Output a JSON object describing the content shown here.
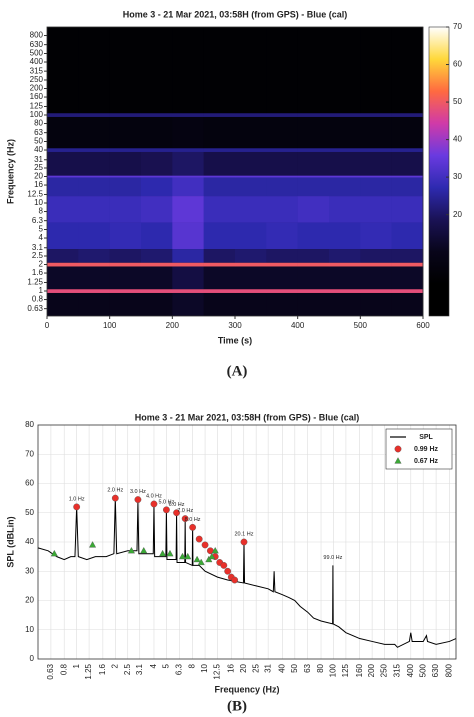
{
  "chart_data": [
    {
      "type": "heatmap",
      "title": "Home 3 - 21 Mar 2021, 03:58H (from GPS) - Blue (cal)",
      "x_label": "Time (s)",
      "y_label": "Frequency (Hz)",
      "panel_label": "(A)",
      "xlim": [
        0,
        600
      ],
      "xticks": [
        0,
        100,
        200,
        300,
        400,
        500,
        600
      ],
      "log_y": true,
      "ylim": [
        0.52,
        1000
      ],
      "yticks": [
        0.63,
        0.8,
        1,
        1.25,
        1.6,
        2,
        2.5,
        3.1,
        4,
        5,
        6.3,
        8,
        10,
        12.5,
        16,
        20,
        25,
        31,
        40,
        50,
        63,
        80,
        100,
        125,
        160,
        200,
        250,
        315,
        400,
        500,
        630,
        800
      ],
      "x_bins": [
        0,
        50,
        100,
        150,
        200,
        250,
        300,
        350,
        400,
        450,
        500,
        550,
        600
      ],
      "y_bins": [
        0.52,
        0.95,
        1.05,
        1.9,
        2.1,
        3,
        6,
        12,
        19.5,
        20.5,
        38,
        42,
        95,
        105,
        1000
      ],
      "values": [
        [
          10,
          10,
          10,
          10,
          12,
          10,
          10,
          10,
          10,
          10,
          10,
          10
        ],
        [
          48,
          48,
          48,
          48,
          48,
          48,
          48,
          48,
          48,
          48,
          48,
          48
        ],
        [
          12,
          12,
          12,
          12,
          16,
          12,
          12,
          12,
          12,
          12,
          12,
          12
        ],
        [
          50,
          50,
          50,
          50,
          50,
          50,
          50,
          50,
          50,
          50,
          50,
          50
        ],
        [
          20,
          21,
          20,
          21,
          26,
          20,
          21,
          20,
          20,
          21,
          20,
          20
        ],
        [
          27,
          27,
          28,
          27,
          33,
          27,
          27,
          28,
          27,
          27,
          28,
          27
        ],
        [
          29,
          29,
          29,
          30,
          34,
          29,
          29,
          29,
          30,
          29,
          29,
          29
        ],
        [
          26,
          26,
          26,
          27,
          30,
          26,
          26,
          26,
          26,
          26,
          26,
          26
        ],
        [
          34,
          34,
          34,
          34,
          34,
          34,
          34,
          34,
          34,
          34,
          34,
          34
        ],
        [
          17,
          17,
          17,
          18,
          20,
          17,
          17,
          17,
          17,
          17,
          17,
          17
        ],
        [
          24,
          24,
          24,
          24,
          24,
          24,
          24,
          24,
          24,
          24,
          24,
          24
        ],
        [
          6,
          6,
          6,
          6,
          7,
          6,
          6,
          6,
          6,
          6,
          6,
          6
        ],
        [
          22,
          22,
          22,
          22,
          22,
          22,
          22,
          22,
          22,
          22,
          22,
          22
        ],
        [
          3,
          3,
          3,
          3,
          3,
          3,
          3,
          3,
          3,
          3,
          3,
          3
        ]
      ],
      "clim": [
        -7,
        70
      ],
      "cticks": [
        20,
        30,
        40,
        50,
        60,
        70
      ],
      "colormap": [
        "#000000",
        "#000000",
        "#08051a",
        "#1a1255",
        "#2e2ab0",
        "#6a3ae0",
        "#d03aa8",
        "#ff6a40",
        "#ffd83a",
        "#ffffff"
      ]
    },
    {
      "type": "line",
      "title": "Home 3 - 21 Mar 2021, 03:58H (from GPS) - Blue (cal)",
      "x_label": "Frequency (Hz)",
      "y_label": "SPL (dBLin)",
      "panel_label": "(B)",
      "log_x": true,
      "xlim": [
        0.5,
        900
      ],
      "xticks": [
        0.63,
        0.8,
        1,
        1.25,
        1.6,
        2,
        2.5,
        3.1,
        4,
        5,
        6.3,
        8,
        10,
        12.5,
        16,
        20,
        25,
        31,
        40,
        50,
        63,
        80,
        100,
        125,
        160,
        200,
        250,
        315,
        400,
        500,
        630,
        800
      ],
      "ylim": [
        0,
        80
      ],
      "yticks": [
        0,
        10,
        20,
        30,
        40,
        50,
        60,
        70,
        80
      ],
      "grid": true,
      "legend": "upper right",
      "series": [
        {
          "name": "SPL",
          "color": "#000000",
          "marker": "none",
          "x": [
            0.5,
            0.6,
            0.7,
            0.8,
            0.9,
            0.97,
            1.0,
            1.03,
            1.2,
            1.4,
            1.7,
            1.95,
            2.0,
            2.05,
            2.5,
            2.95,
            3.0,
            3.05,
            3.5,
            3.95,
            4.0,
            4.05,
            4.95,
            5.0,
            5.05,
            5.95,
            6.0,
            6.05,
            6.95,
            7.0,
            7.05,
            7.95,
            8.0,
            8.05,
            9,
            10,
            12.5,
            15,
            19.9,
            20.1,
            20.3,
            25,
            31,
            34,
            34.5,
            35,
            40,
            45,
            50,
            55,
            63,
            70,
            80,
            98.5,
            99,
            99.5,
            110,
            125,
            160,
            200,
            250,
            300,
            315,
            390,
            400,
            410,
            500,
            530,
            540,
            630,
            800,
            900
          ],
          "values": [
            38,
            37,
            35,
            34,
            35,
            35,
            52,
            35,
            34,
            35,
            35,
            36,
            55,
            36,
            37,
            37,
            54,
            36,
            36,
            36,
            53,
            35,
            35,
            51,
            34,
            34,
            50,
            33,
            33,
            48,
            33,
            32,
            46,
            32,
            32,
            30,
            28,
            27,
            26,
            40,
            26,
            25,
            24,
            23,
            30,
            23,
            22,
            21,
            20,
            18,
            16,
            14,
            13,
            12,
            32,
            12,
            11,
            9,
            7,
            6,
            5,
            5,
            4,
            6,
            9,
            6,
            6,
            8,
            6,
            5,
            6,
            7
          ]
        },
        {
          "name": "0.99 Hz",
          "color": "#e8302a",
          "marker": "circle",
          "x": [
            1.0,
            2.0,
            3.0,
            4.0,
            5.0,
            6.0,
            7.0,
            8.0,
            9.0,
            10,
            11,
            12,
            13,
            14,
            15,
            16,
            17,
            20.1
          ],
          "values": [
            52,
            55,
            54.5,
            53,
            51,
            50,
            48,
            45,
            41,
            39,
            37,
            35,
            33,
            32,
            30,
            28,
            27,
            40
          ]
        },
        {
          "name": "0.67 Hz",
          "color": "#3aaa35",
          "marker": "triangle",
          "x": [
            0.67,
            1.33,
            2.67,
            3.33,
            4.67,
            5.33,
            6.67,
            7.33,
            8.67,
            9.33,
            10.7,
            11.3,
            12
          ],
          "values": [
            36,
            39,
            37,
            37,
            36,
            36,
            35,
            35,
            34,
            33,
            34,
            35,
            37
          ]
        }
      ],
      "annotations": [
        {
          "text": "1.0 Hz",
          "x": 1.0,
          "y": 52
        },
        {
          "text": "2.0 Hz",
          "x": 2.0,
          "y": 55
        },
        {
          "text": "3.0 Hz",
          "x": 3.0,
          "y": 54.5
        },
        {
          "text": "4.0 Hz",
          "x": 4.0,
          "y": 53
        },
        {
          "text": "5.0 Hz",
          "x": 5.0,
          "y": 51
        },
        {
          "text": "6.0 Hz",
          "x": 6.0,
          "y": 50
        },
        {
          "text": "7.0 Hz",
          "x": 7.0,
          "y": 48
        },
        {
          "text": "8.0 Hz",
          "x": 8.0,
          "y": 45
        },
        {
          "text": "20.1 Hz",
          "x": 20.1,
          "y": 40
        },
        {
          "text": "99.0 Hz",
          "x": 99,
          "y": 32
        }
      ]
    }
  ]
}
